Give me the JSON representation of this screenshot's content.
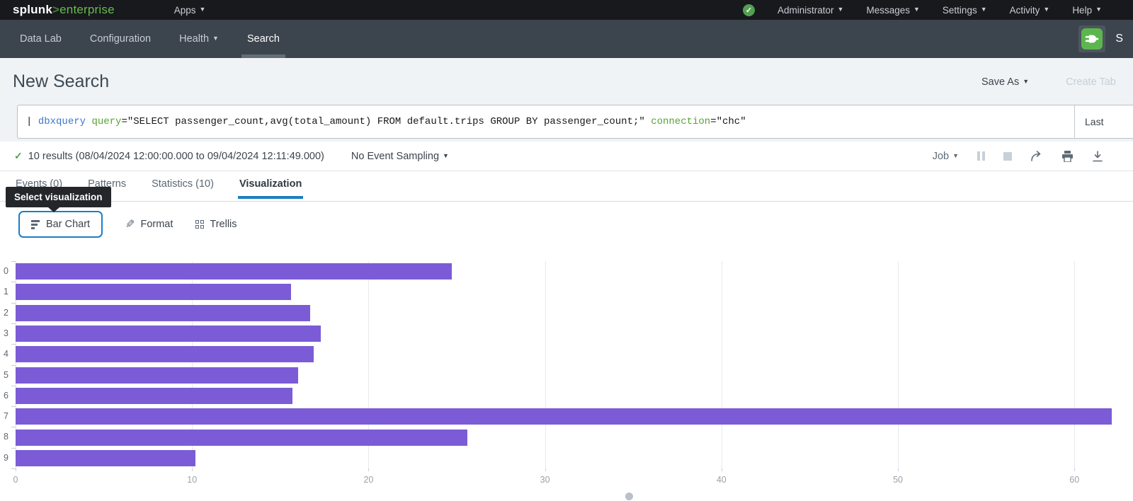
{
  "topbar": {
    "logo_splunk": "splunk",
    "logo_gt": ">",
    "logo_enterprise": "enterprise",
    "apps_label": "Apps",
    "menus": [
      "Administrator",
      "Messages",
      "Settings",
      "Activity",
      "Help"
    ]
  },
  "appnav": {
    "items": [
      {
        "label": "Data Lab",
        "active": false,
        "caret": false
      },
      {
        "label": "Configuration",
        "active": false,
        "caret": false
      },
      {
        "label": "Health",
        "active": false,
        "caret": true
      },
      {
        "label": "Search",
        "active": true,
        "caret": false
      }
    ],
    "app_initial": "S"
  },
  "header": {
    "title": "New Search",
    "save_as": "Save As",
    "create_table": "Create Tab"
  },
  "searchbar": {
    "query_segments": [
      {
        "text": "| ",
        "style": "plain"
      },
      {
        "text": "dbxquery",
        "style": "command"
      },
      {
        "text": " ",
        "style": "plain"
      },
      {
        "text": "query",
        "style": "keyword"
      },
      {
        "text": "=\"SELECT passenger_count,avg(total_amount) FROM default.trips GROUP BY passenger_count;\"",
        "style": "plain"
      },
      {
        "text": " ",
        "style": "plain"
      },
      {
        "text": "connection",
        "style": "keyword"
      },
      {
        "text": "=\"chc\"",
        "style": "plain"
      }
    ],
    "time_range": "Last"
  },
  "results_row": {
    "check": "✓",
    "summary": "10 results (08/04/2024 12:00:00.000 to 09/04/2024 12:11:49.000)",
    "sampling": "No Event Sampling",
    "job_label": "Job"
  },
  "tabs": [
    {
      "label": "Events (0)",
      "active": false
    },
    {
      "label": "Patterns",
      "active": false
    },
    {
      "label": "Statistics (10)",
      "active": false
    },
    {
      "label": "Visualization",
      "active": true
    }
  ],
  "tooltip": "Select visualization",
  "viz_toolbar": {
    "bar_chart": "Bar Chart",
    "format": "Format",
    "trellis": "Trellis"
  },
  "chart_data": {
    "type": "bar",
    "orientation": "horizontal",
    "categories": [
      "0",
      "1",
      "2",
      "3",
      "4",
      "5",
      "6",
      "7",
      "8",
      "9"
    ],
    "values": [
      24.7,
      15.6,
      16.7,
      17.3,
      16.9,
      16.0,
      15.7,
      62.1,
      25.6,
      10.2
    ],
    "xticks": [
      0,
      10,
      20,
      30,
      40,
      50,
      60
    ],
    "xlim": [
      0,
      63
    ],
    "grid": true,
    "bar_color": "#7B5CD6",
    "legend": "none"
  },
  "colors": {
    "accent_blue": "#1D7EC4",
    "splunk_green": "#67BB4D",
    "status_green": "#53A051",
    "bar_purple": "#7B5CD6"
  }
}
